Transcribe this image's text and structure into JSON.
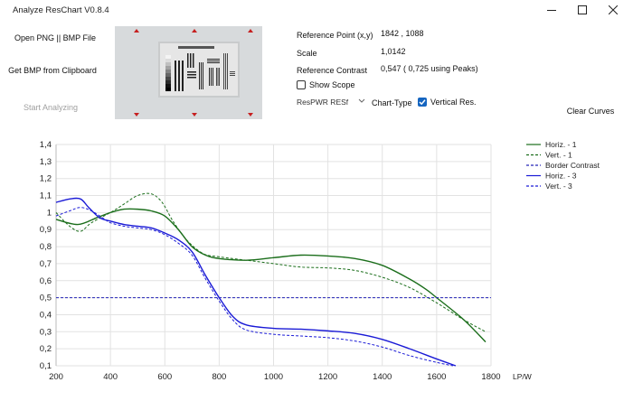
{
  "window": {
    "title": "Analyze ResChart  V0.8.4",
    "minimize_icon": "minimize-icon",
    "maximize_icon": "maximize-icon",
    "close_icon": "close-icon"
  },
  "buttons": {
    "open_file": "Open PNG || BMP File",
    "get_clipboard": "Get BMP from Clipboard",
    "start_analyzing": "Start Analyzing",
    "clear_curves": "Clear Curves"
  },
  "info": {
    "reference_point_label": "Reference Point (x,y)",
    "reference_point_value": "1842 , 1088",
    "scale_label": "Scale",
    "scale_value": "1,0142",
    "reference_contrast_label": "Reference Contrast",
    "reference_contrast_value": "0,547 ( 0,725 using Peaks)"
  },
  "options": {
    "show_scope_label": "Show Scope",
    "show_scope_checked": false,
    "chart_type_selected": "ResPWR RESf",
    "chart_type_label": "Chart-Type",
    "vertical_res_label": "Vertical Res.",
    "vertical_res_checked": true
  },
  "chart_data": {
    "type": "line",
    "xlabel": "LP/W",
    "ylabel": "",
    "xlim": [
      200,
      1800
    ],
    "ylim": [
      0.1,
      1.4
    ],
    "xticks": [
      200,
      400,
      600,
      800,
      1000,
      1200,
      1400,
      1600,
      1800
    ],
    "yticks": [
      "0,1",
      "0,2",
      "0,3",
      "0,4",
      "0,5",
      "0,6",
      "0,7",
      "0,8",
      "0,9",
      "1",
      "1,1",
      "1,2",
      "1,3",
      "1,4"
    ],
    "grid": true,
    "legend_position": "top-right",
    "series": [
      {
        "name": "Horiz. - 1",
        "color": "#1b6e1b",
        "dash": false,
        "x": [
          200,
          280,
          350,
          400,
          450,
          500,
          550,
          600,
          650,
          700,
          750,
          800,
          900,
          1000,
          1100,
          1200,
          1300,
          1400,
          1500,
          1560,
          1600,
          1700,
          1780
        ],
        "y": [
          0.96,
          0.93,
          0.97,
          1.0,
          1.02,
          1.02,
          1.01,
          0.98,
          0.9,
          0.8,
          0.75,
          0.73,
          0.72,
          0.735,
          0.75,
          0.745,
          0.73,
          0.69,
          0.61,
          0.55,
          0.5,
          0.37,
          0.24
        ]
      },
      {
        "name": "Vert. - 1",
        "color": "#1b6e1b",
        "dash": true,
        "x": [
          200,
          250,
          290,
          330,
          400,
          450,
          500,
          550,
          590,
          630,
          680,
          740,
          800,
          900,
          1000,
          1100,
          1200,
          1300,
          1400,
          1500,
          1600,
          1700,
          1780
        ],
        "y": [
          1.0,
          0.92,
          0.89,
          0.94,
          1.0,
          1.05,
          1.1,
          1.11,
          1.06,
          0.95,
          0.84,
          0.76,
          0.74,
          0.72,
          0.7,
          0.68,
          0.675,
          0.66,
          0.62,
          0.56,
          0.47,
          0.37,
          0.3
        ]
      },
      {
        "name": "Border Contrast",
        "color": "#2424b8",
        "dash": true,
        "x": [
          200,
          1800
        ],
        "y": [
          0.5,
          0.5
        ]
      },
      {
        "name": "Horiz. - 3",
        "color": "#1a1ad6",
        "dash": false,
        "x": [
          200,
          250,
          290,
          320,
          360,
          400,
          450,
          500,
          550,
          600,
          650,
          700,
          750,
          800,
          850,
          900,
          1000,
          1100,
          1200,
          1300,
          1400,
          1500,
          1600,
          1670
        ],
        "y": [
          1.06,
          1.08,
          1.08,
          1.03,
          0.97,
          0.95,
          0.93,
          0.92,
          0.91,
          0.88,
          0.84,
          0.77,
          0.63,
          0.5,
          0.39,
          0.34,
          0.32,
          0.315,
          0.305,
          0.29,
          0.255,
          0.2,
          0.14,
          0.1
        ]
      },
      {
        "name": "Vert. - 3",
        "color": "#1a1ad6",
        "dash": true,
        "x": [
          200,
          250,
          290,
          330,
          380,
          400,
          450,
          500,
          550,
          600,
          650,
          700,
          750,
          800,
          850,
          900,
          1000,
          1100,
          1200,
          1300,
          1400,
          1500,
          1600,
          1660
        ],
        "y": [
          0.98,
          1.01,
          1.03,
          1.01,
          0.96,
          0.94,
          0.92,
          0.91,
          0.9,
          0.87,
          0.82,
          0.75,
          0.61,
          0.48,
          0.37,
          0.31,
          0.285,
          0.275,
          0.265,
          0.245,
          0.21,
          0.16,
          0.12,
          0.1
        ]
      }
    ]
  }
}
